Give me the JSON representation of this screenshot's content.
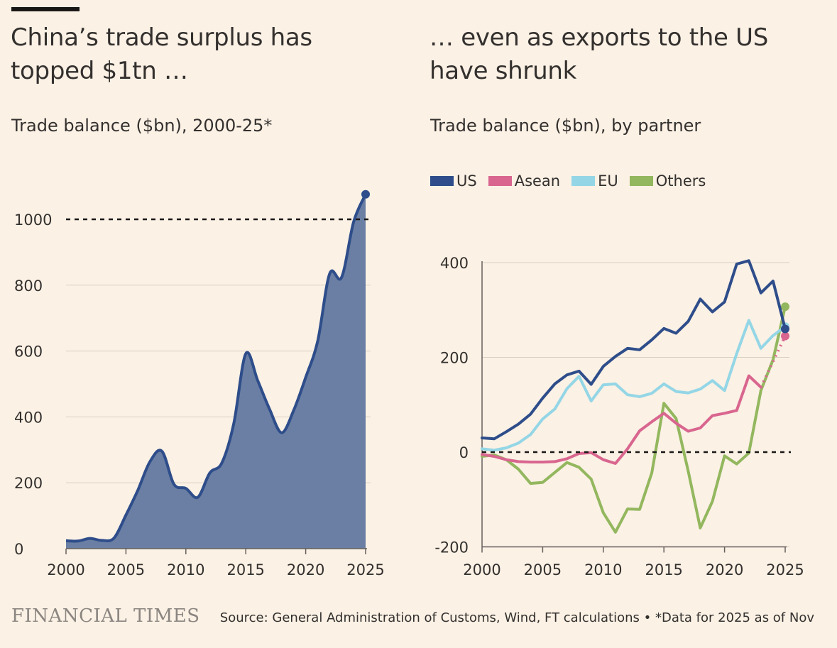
{
  "colors": {
    "background": "#fbf1e5",
    "area_fill": "#6a7fa3",
    "area_line": "#2e4d8a",
    "US": "#2e4d8a",
    "Asean": "#d9668f",
    "EU": "#94d6e6",
    "Others": "#93b75e"
  },
  "left_title": "China’s trade surplus has topped $1tn …",
  "left_subtitle": "Trade balance ($bn), 2000-25*",
  "right_title": "… even as exports to the US have shrunk",
  "right_subtitle": "Trade balance ($bn), by partner",
  "footer": {
    "logo": "FINANCIAL TIMES",
    "source": "Source: General Administration of Customs, Wind, FT calculations • *Data for 2025 as of Nov"
  },
  "chart_data": [
    {
      "type": "area",
      "title": "China’s trade surplus has topped $1tn …",
      "subtitle": "Trade balance ($bn), 2000-25*",
      "x": [
        2000,
        2001,
        2002,
        2003,
        2004,
        2005,
        2006,
        2007,
        2008,
        2009,
        2010,
        2011,
        2012,
        2013,
        2014,
        2015,
        2016,
        2017,
        2018,
        2019,
        2020,
        2021,
        2022,
        2023,
        2024,
        2025
      ],
      "values": [
        24,
        23,
        31,
        25,
        32,
        102,
        178,
        264,
        296,
        196,
        183,
        156,
        230,
        260,
        380,
        592,
        510,
        422,
        352,
        420,
        520,
        630,
        835,
        824,
        992,
        1076
      ],
      "xticks": [
        "2000",
        "2005",
        "2010",
        "2015",
        "2020",
        "2025"
      ],
      "yticks": [
        "0",
        "200",
        "400",
        "600",
        "800",
        "1000"
      ],
      "ylim": [
        0,
        1100
      ],
      "reference_line": 1000,
      "grid": true
    },
    {
      "type": "line",
      "title": "… even as exports to the US have shrunk",
      "subtitle": "Trade balance ($bn), by partner",
      "x": [
        2000,
        2001,
        2002,
        2003,
        2004,
        2005,
        2006,
        2007,
        2008,
        2009,
        2010,
        2011,
        2012,
        2013,
        2014,
        2015,
        2016,
        2017,
        2018,
        2019,
        2020,
        2021,
        2022,
        2023,
        2024,
        2025
      ],
      "series": [
        {
          "name": "US",
          "values": [
            30,
            28,
            43,
            59,
            80,
            114,
            144,
            163,
            171,
            143,
            181,
            202,
            219,
            216,
            237,
            261,
            251,
            276,
            323,
            296,
            317,
            397,
            404,
            336,
            361,
            260
          ]
        },
        {
          "name": "Asean",
          "values": [
            -5,
            -9,
            -16,
            -20,
            -21,
            -21,
            -20,
            -14,
            -3,
            -1,
            -16,
            -24,
            7,
            45,
            64,
            82,
            61,
            44,
            51,
            77,
            82,
            88,
            161,
            137,
            null,
            245
          ]
        },
        {
          "name": "EU",
          "values": [
            7,
            4,
            9,
            19,
            37,
            70,
            91,
            134,
            160,
            108,
            142,
            144,
            121,
            117,
            124,
            144,
            128,
            125,
            133,
            151,
            130,
            208,
            278,
            219,
            246,
            265
          ]
        },
        {
          "name": "Others",
          "values": [
            -9,
            -6,
            -16,
            -36,
            -66,
            -64,
            -43,
            -22,
            -32,
            -57,
            -128,
            -169,
            -120,
            -121,
            -44,
            103,
            71,
            -40,
            -160,
            -104,
            -8,
            -25,
            -2,
            130,
            195,
            307
          ]
        }
      ],
      "xticks": [
        "2000",
        "2005",
        "2010",
        "2015",
        "2020",
        "2025"
      ],
      "yticks": [
        "-200",
        "0",
        "200",
        "400"
      ],
      "ylim": [
        -200,
        420
      ],
      "reference_line": 0,
      "legend": "top-left",
      "grid": true
    }
  ]
}
